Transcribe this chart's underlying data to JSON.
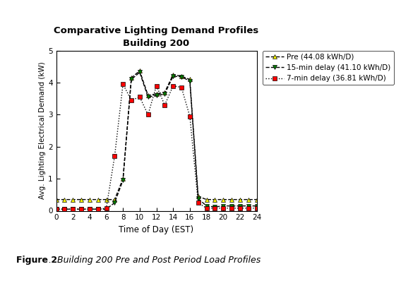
{
  "title_line1": "Comparative Lighting Demand Profiles",
  "title_line2": "Building 200",
  "xlabel": "Time of Day (EST)",
  "ylabel": "Avg. Lighting Electrical Demand (kW)",
  "xlim": [
    0,
    24
  ],
  "ylim": [
    0,
    5
  ],
  "xticks": [
    0,
    2,
    4,
    6,
    8,
    10,
    12,
    14,
    16,
    18,
    20,
    22,
    24
  ],
  "yticks": [
    0,
    1,
    2,
    3,
    4,
    5
  ],
  "pre_label": "Pre (44.08 kWh/D)",
  "delay15_label": "15-min delay (41.10 kWh/D)",
  "delay7_label": "7-min delay (36.81 kWh/D)",
  "time": [
    0,
    1,
    2,
    3,
    4,
    5,
    6,
    7,
    8,
    9,
    10,
    11,
    12,
    13,
    14,
    15,
    16,
    17,
    18,
    19,
    20,
    21,
    22,
    23,
    24
  ],
  "pre": [
    0.35,
    0.35,
    0.35,
    0.35,
    0.35,
    0.35,
    0.35,
    0.35,
    1.0,
    4.15,
    4.37,
    3.6,
    3.65,
    3.7,
    4.25,
    4.2,
    4.1,
    0.45,
    0.35,
    0.35,
    0.35,
    0.35,
    0.35,
    0.35,
    0.35
  ],
  "delay15": [
    0.05,
    0.05,
    0.05,
    0.05,
    0.05,
    0.05,
    0.05,
    0.25,
    0.95,
    4.1,
    4.32,
    3.55,
    3.6,
    3.65,
    4.2,
    4.18,
    4.05,
    0.38,
    0.15,
    0.12,
    0.15,
    0.15,
    0.15,
    0.15,
    0.15
  ],
  "delay7": [
    0.05,
    0.05,
    0.05,
    0.05,
    0.05,
    0.05,
    0.08,
    1.7,
    3.95,
    3.45,
    3.55,
    3.0,
    3.9,
    3.3,
    3.9,
    3.85,
    2.95,
    0.25,
    0.08,
    0.08,
    0.08,
    0.08,
    0.08,
    0.08,
    0.08
  ],
  "caption_bold": "Figure 2",
  "caption_italic": ".  Building 200 Pre and Post Period Load Profiles",
  "background_color": "#ffffff"
}
